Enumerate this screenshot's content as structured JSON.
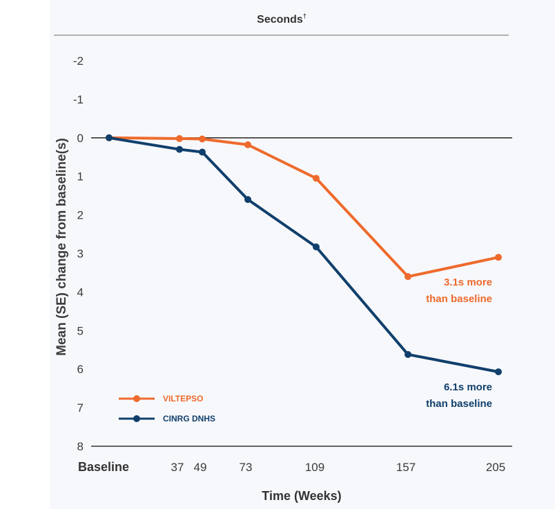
{
  "chart_data": {
    "type": "line",
    "title": "Seconds",
    "title_mark": "†",
    "xlabel": "Time (Weeks)",
    "ylabel": "Mean (SE) change from baseline(s)",
    "x": [
      0,
      37,
      49,
      73,
      109,
      157,
      205
    ],
    "x_tick_labels": [
      "Baseline",
      "37",
      "49",
      "73",
      "109",
      "157",
      "205"
    ],
    "y_ticks": [
      -2,
      -1,
      0,
      1,
      2,
      3,
      4,
      5,
      6,
      7,
      8
    ],
    "ylim": [
      -2,
      8
    ],
    "y_inverted": true,
    "series": [
      {
        "name": "VILTEPSO",
        "color": "#ee6a2c",
        "values": [
          0,
          0.02,
          0.03,
          0.18,
          1.05,
          3.6,
          3.1
        ]
      },
      {
        "name": "CINRG DNHS",
        "color": "#103f6c",
        "values": [
          0,
          0.3,
          0.37,
          1.6,
          2.83,
          5.62,
          6.07
        ]
      }
    ],
    "annotations": [
      {
        "series": "VILTEPSO",
        "lines": [
          "3.1s more",
          "than baseline"
        ]
      },
      {
        "series": "CINRG DNHS",
        "lines": [
          "6.1s more",
          "than baseline"
        ]
      }
    ],
    "legend_position": "bottom-left"
  },
  "colors": {
    "panel_background": "#f7f8fb",
    "axis": "#333333",
    "title_rule": "#9a9a9a"
  }
}
